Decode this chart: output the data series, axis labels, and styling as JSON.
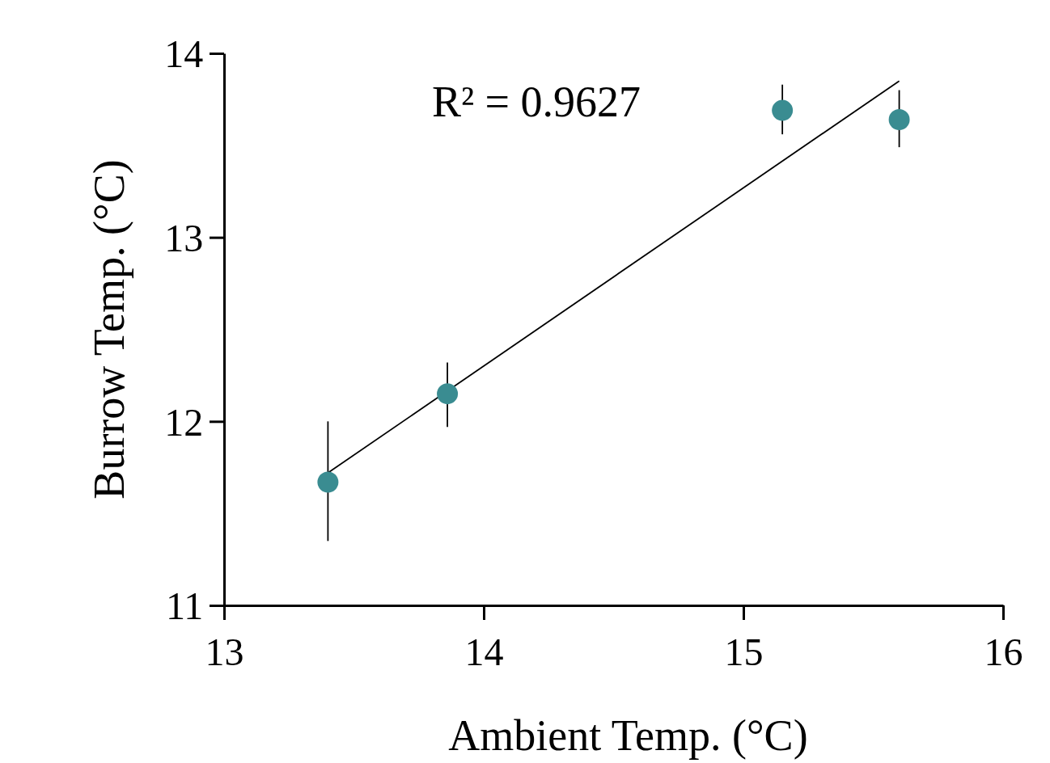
{
  "chart_data": {
    "type": "scatter",
    "xlabel": "Ambient Temp. (°C)",
    "ylabel": "Burrow Temp. (°C)",
    "xlim": [
      13,
      16
    ],
    "xticks": [
      13,
      14,
      15,
      16
    ],
    "ylim": [
      11,
      14
    ],
    "yticks": [
      11,
      12,
      13,
      14
    ],
    "grid": false,
    "annotations": [
      "R² = 0.9627"
    ],
    "series": [
      {
        "marker": "circle",
        "color": "#3a8c91",
        "x": [
          13.4,
          13.86,
          15.15,
          15.6
        ],
        "values": [
          11.67,
          12.15,
          13.69,
          13.64
        ],
        "errors": [
          [
            11.35,
            12.0
          ],
          [
            11.97,
            12.32
          ],
          [
            13.56,
            13.83
          ],
          [
            13.49,
            13.8
          ]
        ]
      },
      {
        "type": "line",
        "color": "#000000",
        "x": [
          13.4,
          15.6
        ],
        "values": [
          11.72,
          13.85
        ],
        "line_style": "solid"
      }
    ]
  }
}
